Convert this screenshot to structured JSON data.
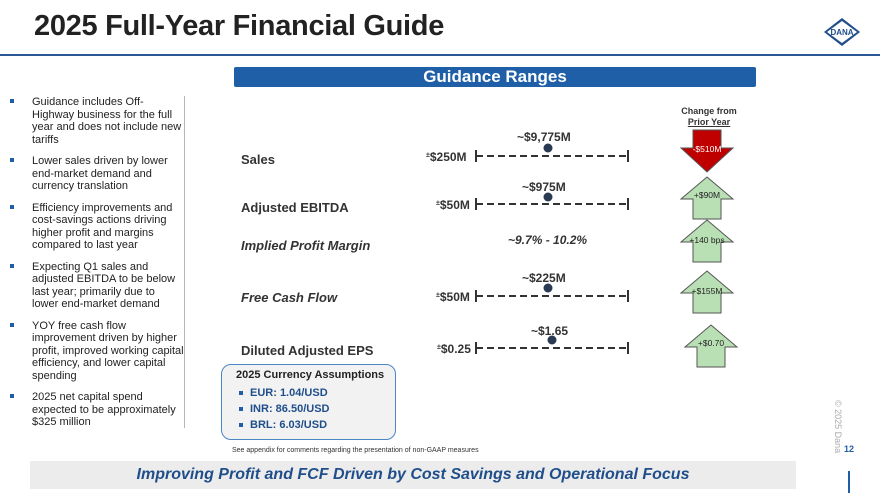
{
  "title": "2025 Full-Year Financial Guide",
  "logo_text": "DANA",
  "guidance_header": "Guidance Ranges",
  "bullets": [
    "Guidance includes Off-Highway business for the full year and does not include new tariffs",
    "Lower sales driven by lower end-market demand and currency translation",
    "Efficiency improvements and cost-savings actions driving higher profit and margins compared to last year",
    "Expecting Q1 sales and adjusted EBITDA to be below last year; primarily due to lower end-market demand",
    "YOY free cash flow improvement driven by higher profit, improved working capital efficiency, and lower capital spending",
    "2025 net capital spend expected to be approximately $325 million"
  ],
  "change_header": {
    "line1": "Change from",
    "line2": "Prior Year"
  },
  "metrics": {
    "sales": {
      "label": "Sales",
      "midpoint": "~$9,775M",
      "range_sym": "±",
      "range": "$250M",
      "change": "-$510M",
      "direction": "down"
    },
    "ebitda": {
      "label": "Adjusted EBITDA",
      "midpoint": "~$975M",
      "range_sym": "±",
      "range": "$50M",
      "change": "+$90M",
      "direction": "up"
    },
    "margin": {
      "label": "Implied Profit Margin",
      "value": "~9.7% - 10.2%",
      "change": "+140 bps",
      "direction": "up"
    },
    "fcf": {
      "label": "Free Cash Flow",
      "midpoint": "~$225M",
      "range_sym": "±",
      "range": "$50M",
      "change": "+$155M",
      "direction": "up"
    },
    "eps": {
      "label": "Diluted Adjusted EPS",
      "midpoint": "~$1.65",
      "range_sym": "±",
      "range": "$0.25",
      "change": "+$0.70",
      "direction": "up"
    }
  },
  "currency": {
    "title": "2025 Currency Assumptions",
    "items": [
      "EUR: 1.04/USD",
      "INR: 86.50/USD",
      "BRL: 6.03/USD"
    ]
  },
  "footnote": "See appendix for comments regarding the presentation of non-GAAP measures",
  "page_number": "12",
  "copyright": "© 2025 Dana",
  "bottom_banner": "Improving Profit and FCF Driven by Cost Savings and Operational Focus",
  "colors": {
    "brand_blue": "#1f5fa8",
    "up_green": "#b9e0b4",
    "down_red": "#c00000"
  }
}
